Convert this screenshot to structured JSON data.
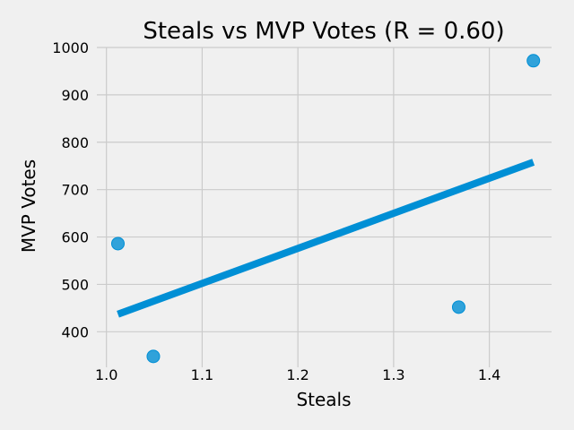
{
  "chart_data": {
    "type": "scatter",
    "title": "Steals vs MVP Votes (R = 0.60)",
    "xlabel": "Steals",
    "ylabel": "MVP Votes",
    "xlim": [
      0.99,
      1.465
    ],
    "ylim": [
      325,
      1000
    ],
    "x_ticks": [
      1.0,
      1.1,
      1.2,
      1.3,
      1.4
    ],
    "x_tick_labels": [
      "1.0",
      "1.1",
      "1.2",
      "1.3",
      "1.4"
    ],
    "y_ticks": [
      400,
      500,
      600,
      700,
      800,
      900,
      1000
    ],
    "y_tick_labels": [
      "400",
      "500",
      "600",
      "700",
      "800",
      "900",
      "1000"
    ],
    "grid": true,
    "points": [
      {
        "x": 1.012,
        "y": 586
      },
      {
        "x": 1.049,
        "y": 348
      },
      {
        "x": 1.368,
        "y": 452
      },
      {
        "x": 1.446,
        "y": 972
      }
    ],
    "fit_line": {
      "x": [
        1.012,
        1.446
      ],
      "y": [
        437,
        758
      ]
    },
    "colors": {
      "point": "#008fd5",
      "line": "#008fd5",
      "background": "#f0f0f0"
    }
  }
}
